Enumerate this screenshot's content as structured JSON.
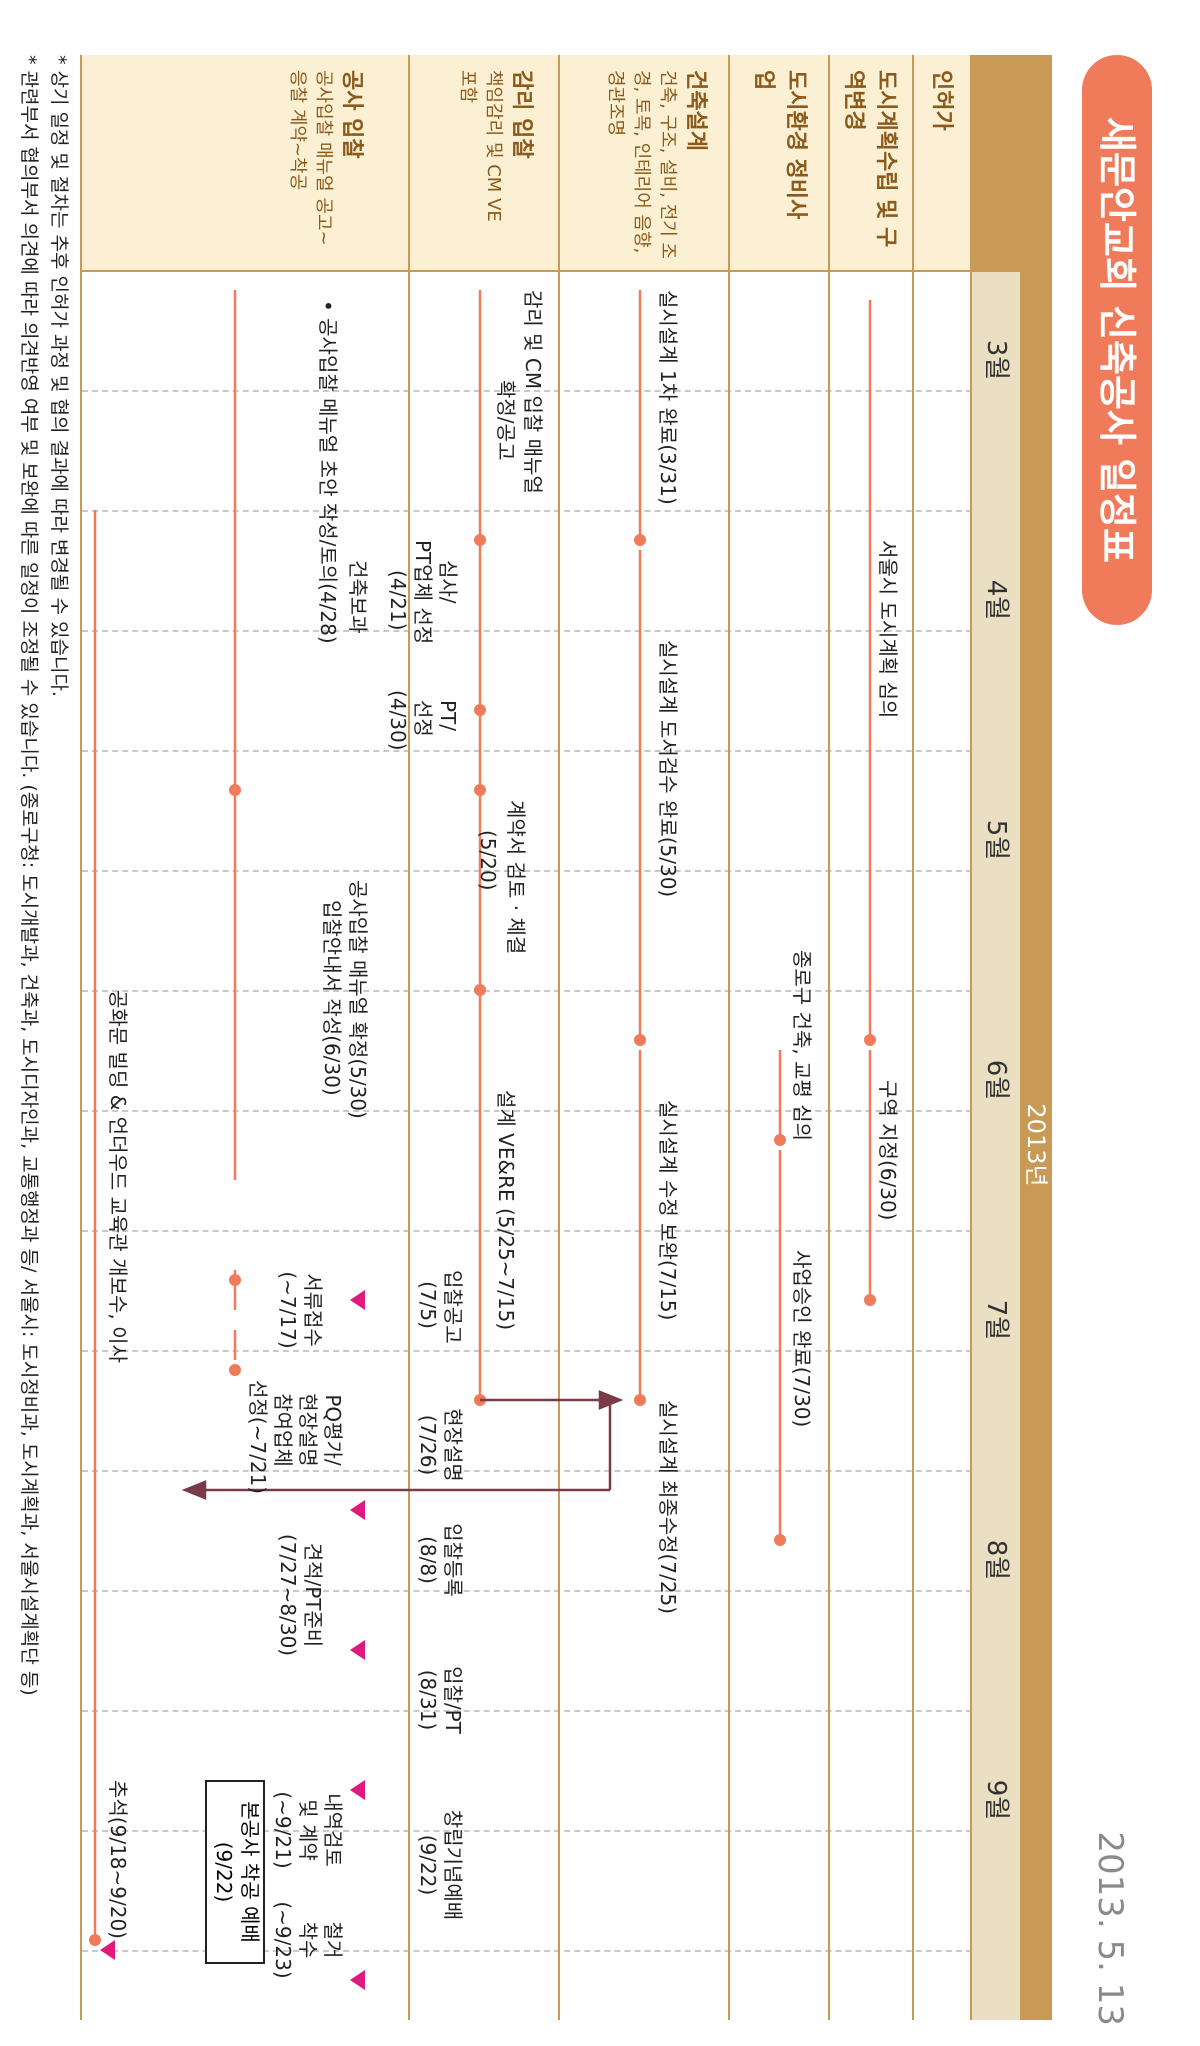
{
  "title": "새문안교회 신축공사 일정표",
  "date": "2013. 5. 13",
  "year": "2013년",
  "months": [
    "3월",
    "4월",
    "5월",
    "6월",
    "7월",
    "8월",
    "9월"
  ],
  "categories": [
    {
      "title": "인허가",
      "sub": ""
    },
    {
      "title": "도시계획수립 및 구역변경",
      "sub": ""
    },
    {
      "title": "도시환경 정비사업",
      "sub": ""
    },
    {
      "title": "건축설계",
      "sub": "건축, 구조, 설비, 전기 조경, 토목, 인테리어 음향, 경관조명"
    },
    {
      "title": "감리 입찰",
      "sub": "책임감리 및 CM VE 포함"
    },
    {
      "title": "공사 입찰",
      "sub": "공사입찰 매뉴얼 공고~응찰 계약~착공"
    }
  ],
  "items": {
    "seoul_plan": "서울시 도시계획 심의",
    "zone": "구역 지정(6/30)",
    "jongno": "종로구 건축, 교평 심의",
    "project_ok": "사업승인 완료(7/30)",
    "design1": "실시설계 1차 완료(3/31)",
    "design2": "실시설계 도서검수 완료(5/30)",
    "design3": "실시설계 수정 보완(7/15)",
    "design4": "실시설계 최종수정(7/25)",
    "cm1a": "감리 및 CM 입찰 매뉴얼",
    "cm1b": "확정/공고",
    "cm2a": "심사/",
    "cm2b": "PT업체 선정",
    "cm2c": "(4/21)",
    "cm3a": "PT/",
    "cm3b": "선정",
    "cm3c": "(4/30)",
    "cm4a": "계약서 검토 · 체결",
    "cm4b": "(5/20)",
    "cm5": "설계 VE&RE (5/25~7/15)",
    "bid1a": "건축보과",
    "bid1b": "• 공사입찰 메뉴얼 초안 작성/토의(4/28)",
    "bid2a": "공사입찰 매뉴얼 확정(5/30)",
    "bid2b": "입찰안내서 작성(6/30)",
    "notice_a": "입찰공고",
    "notice_b": "(7/5)",
    "doc_a": "서류접수",
    "doc_b": "(~7/17)",
    "pq_a": "PQ평가/",
    "pq_b": "현장설명",
    "pq_c": "참여업체",
    "pq_d": "선정(~7/21)",
    "site_a": "현장설명",
    "site_b": "(7/26)",
    "reg_a": "입찰등록",
    "reg_b": "(8/8)",
    "est_a": "견적/PT준비",
    "est_b": "(7/27~8/30)",
    "pt_a": "입찰/PT",
    "pt_b": "(8/31)",
    "found_a": "창립기념예배",
    "found_b": "(9/22)",
    "review_a": "내역검토",
    "review_b": "및 계약",
    "review_c": "(~9/21)",
    "demo_a": "철거",
    "demo_b": "착수",
    "demo_c": "(~9/23)",
    "start_a": "본공사 착공 예배",
    "start_b": "(9/22)",
    "move": "공화문 빌딩 & 언더우드 교육관 개보수, 이사",
    "chuseok": "추석(9/18~9/20)"
  },
  "footnotes": [
    "* 상기 일정 및 절차는 추후 인허가 과정 및 협의 결과에 따라 변경될 수 있습니다.",
    "* 관련부서 협의부서 의견에 따라 의견반영 여부 및 보완에 따른 일정이 조정될 수 있습니다. (종로구청: 도시개발과, 건축과, 도시디자인과, 교통행정과 등/ 서울시: 도시정비과, 도시계획과, 서울시설계획단 등)"
  ],
  "colors": {
    "accent": "#ef7b5b",
    "header": "#c89a55",
    "label_bg": "#fbf0d3",
    "month_bg": "#eadfc2",
    "arrow": "#7a3a4a",
    "marker": "#e0197d"
  }
}
